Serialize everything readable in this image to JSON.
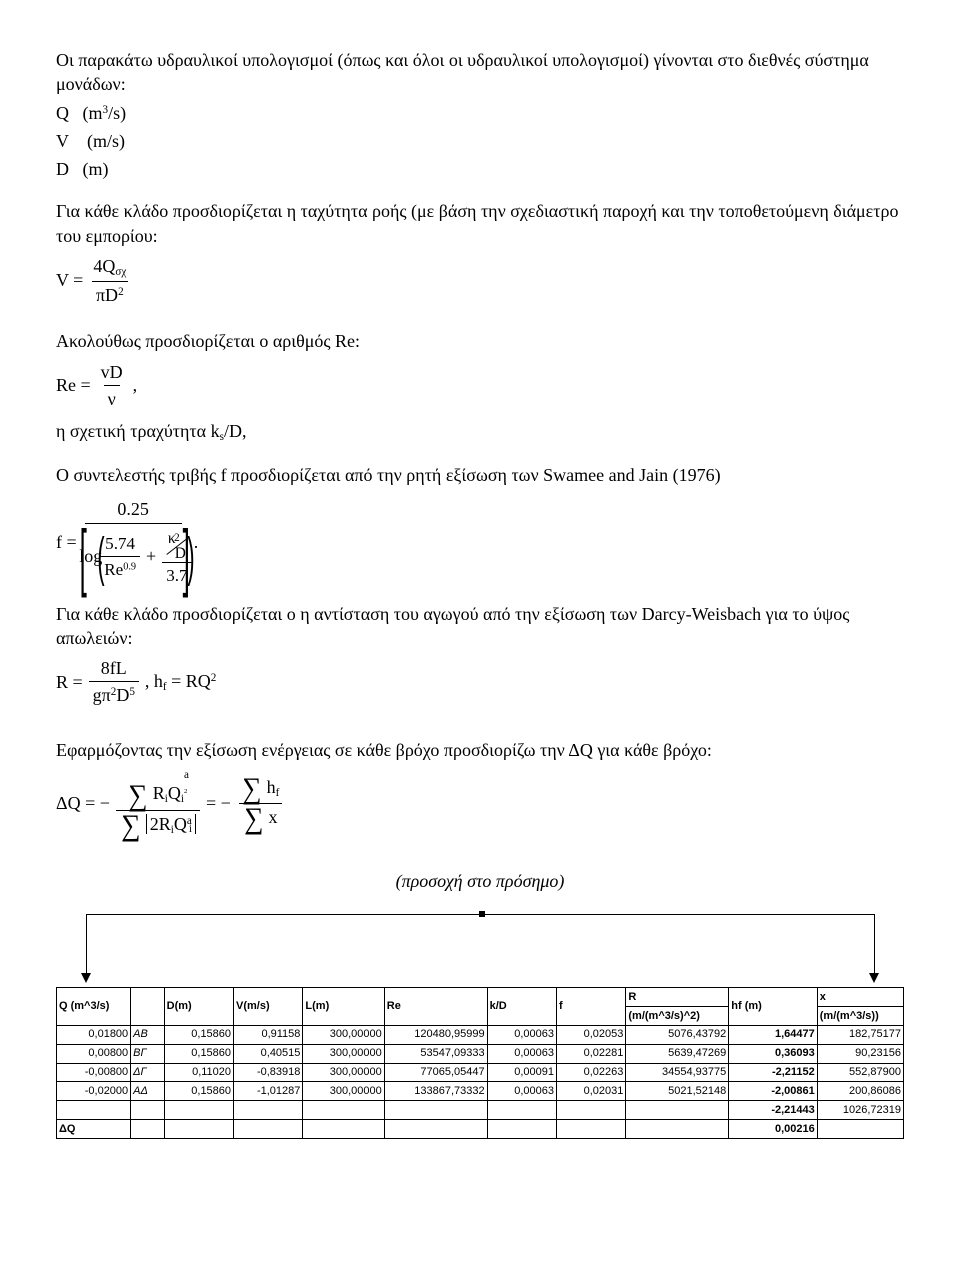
{
  "text": {
    "para1": "Οι παρακάτω υδραυλικοί υπολογισμοί (όπως και όλοι οι υδραυλικοί υπολογισμοί) γίνονται στο διεθνές σύστημα μονάδων:",
    "unitsQ_sym": "Q",
    "unitsQ_u": "(m",
    "unitsQ_sup": "3",
    "unitsQ_tail": "/s)",
    "unitsV_sym": "V",
    "unitsV_u": "(m/s)",
    "unitsD_sym": "D",
    "unitsD_u": "(m)",
    "para2": "Για κάθε κλάδο προσδιορίζεται η ταχύτητα ροής (με βάση την σχεδιαστική παροχή και την τοποθετούμενη διάμετρο του εμπορίου:",
    "eq_V_lhs": "V =",
    "eq_V_num": "4Q",
    "eq_V_numsub": "σχ",
    "eq_V_den": "πD",
    "eq_V_densup": "2",
    "para3": "Ακολούθως προσδιορίζεται ο αριθμός Re:",
    "eq_Re_lhs": "Re =",
    "eq_Re_num": "vD",
    "eq_Re_den": "ν",
    "eq_Re_comma": ",",
    "para4": "η σχετική τραχύτητα k",
    "para4_sub": "s",
    "para4_tail": "/D,",
    "para5": "Ο συντελεστής τριβής f  προσδιορίζεται από την ρητή εξίσωση  των Swamee and Jain (1976)",
    "eq_f_lhs": "f =",
    "eq_f_num": "0.25",
    "eq_log": "log",
    "eq_574": "5.74",
    "eq_Re": "Re",
    "eq_09": "0.9",
    "eq_plus": "+",
    "eq_k": "κ",
    "eq_D": "D",
    "eq_37": "3.7",
    "eq_sq": "2",
    "para6": "Για κάθε κλάδο προσδιορίζεται ο η αντίσταση του αγωγού από την εξίσωση των Darcy-Weisbach για το ύψος απωλειών:",
    "eq_R_lhs": "R =",
    "eq_R_num": "8fL",
    "eq_R_den1": "gπ",
    "eq_R_den_sup1": "2",
    "eq_R_den2": "D",
    "eq_R_den_sup2": "5",
    "eq_hf_lhs": ", h",
    "eq_hf_sub": "f",
    "eq_hf_rhs": " = RQ",
    "eq_hf_sup": "2",
    "para7": "Εφαρμόζοντας την εξίσωση ενέργειας σε κάθε βρόχο προσδιορίζω την ΔQ για κάθε βρόχο:",
    "eq_DQ_lhs": "ΔQ = −",
    "eq_DQ_num": "R",
    "eq_DQ_num_i": "i",
    "eq_DQ_num_Q": "Q",
    "eq_DQ_num_a": "a",
    "eq_DQ_den_2R": "2R",
    "eq_DQ_mid": " = −",
    "eq_DQ_hf": "h",
    "eq_DQ_hf_sub": "f",
    "eq_DQ_x": "x",
    "caption": "(προσοχή στο πρόσημο)",
    "colR_line2": "(m/(m^3/s)^2)",
    "colx_line2": "(m/(m^3/s))",
    "dq_val": "0,00216"
  },
  "table": {
    "headers": [
      "Q (m^3/s)",
      "",
      "D(m)",
      "V(m/s)",
      "L(m)",
      "Re",
      "k/D",
      "f",
      "R",
      "hf (m)",
      "x"
    ],
    "rows": [
      {
        "q": "0,01800",
        "lab": "ΑΒ",
        "d": "0,15860",
        "v": "0,91158",
        "l": "300,00000",
        "re": "120480,95999",
        "kd": "0,00063",
        "f": "0,02053",
        "r": "5076,43792",
        "hf": "1,64477",
        "x": "182,75177"
      },
      {
        "q": "0,00800",
        "lab": "ΒΓ",
        "d": "0,15860",
        "v": "0,40515",
        "l": "300,00000",
        "re": "53547,09333",
        "kd": "0,00063",
        "f": "0,02281",
        "r": "5639,47269",
        "hf": "0,36093",
        "x": "90,23156"
      },
      {
        "q": "-0,00800",
        "lab": "ΔΓ",
        "d": "0,11020",
        "v": "-0,83918",
        "l": "300,00000",
        "re": "77065,05447",
        "kd": "0,00091",
        "f": "0,02263",
        "r": "34554,93775",
        "hf": "-2,21152",
        "x": "552,87900"
      },
      {
        "q": "-0,02000",
        "lab": "ΑΔ",
        "d": "0,15860",
        "v": "-1,01287",
        "l": "300,00000",
        "re": "133867,73332",
        "kd": "0,00063",
        "f": "0,02031",
        "r": "5021,52148",
        "hf": "-2,00861",
        "x": "200,86086"
      }
    ],
    "sumhf": "-2,21443",
    "sumx": "1026,72319",
    "dq_label": "ΔQ"
  }
}
